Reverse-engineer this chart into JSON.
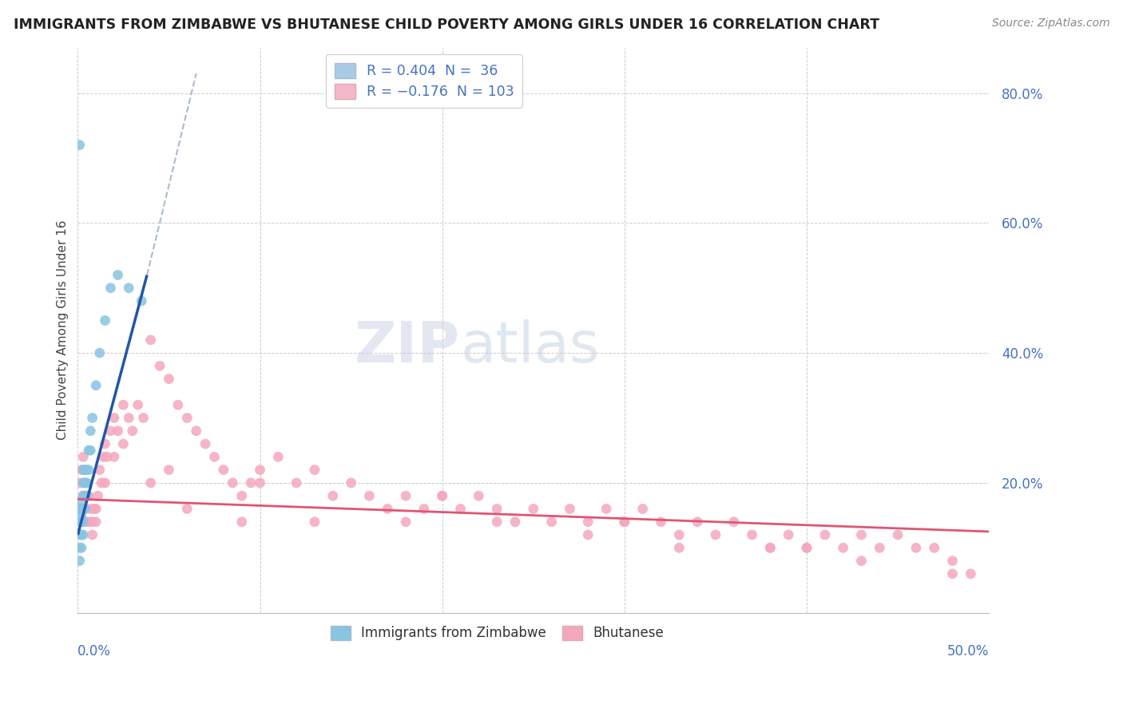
{
  "title": "IMMIGRANTS FROM ZIMBABWE VS BHUTANESE CHILD POVERTY AMONG GIRLS UNDER 16 CORRELATION CHART",
  "source": "Source: ZipAtlas.com",
  "ylabel": "Child Poverty Among Girls Under 16",
  "yticks": [
    0.0,
    0.2,
    0.4,
    0.6,
    0.8
  ],
  "xlim": [
    0.0,
    0.5
  ],
  "ylim": [
    0.0,
    0.87
  ],
  "zimbabwe_color": "#89c4e1",
  "bhutanese_color": "#f4a8bc",
  "trendline_zimbabwe_color": "#2255aa",
  "trendline_bhutanese_color": "#e05575",
  "background_color": "#ffffff",
  "grid_color": "#cccccc",
  "watermark_zip": "ZIP",
  "watermark_atlas": "atlas",
  "zimbabwe_x": [
    0.001,
    0.001,
    0.001,
    0.001,
    0.001,
    0.002,
    0.002,
    0.002,
    0.002,
    0.002,
    0.003,
    0.003,
    0.003,
    0.003,
    0.003,
    0.003,
    0.004,
    0.004,
    0.004,
    0.004,
    0.005,
    0.005,
    0.005,
    0.006,
    0.006,
    0.007,
    0.007,
    0.008,
    0.01,
    0.012,
    0.015,
    0.018,
    0.022,
    0.028,
    0.035,
    0.001
  ],
  "zimbabwe_y": [
    0.08,
    0.1,
    0.12,
    0.14,
    0.16,
    0.1,
    0.12,
    0.14,
    0.15,
    0.17,
    0.12,
    0.14,
    0.16,
    0.18,
    0.2,
    0.22,
    0.16,
    0.18,
    0.2,
    0.22,
    0.18,
    0.2,
    0.22,
    0.22,
    0.25,
    0.25,
    0.28,
    0.3,
    0.35,
    0.4,
    0.45,
    0.5,
    0.52,
    0.5,
    0.48,
    0.72
  ],
  "bhutanese_x": [
    0.001,
    0.002,
    0.002,
    0.003,
    0.003,
    0.004,
    0.004,
    0.005,
    0.005,
    0.006,
    0.006,
    0.007,
    0.008,
    0.009,
    0.01,
    0.011,
    0.012,
    0.013,
    0.014,
    0.015,
    0.016,
    0.018,
    0.02,
    0.022,
    0.025,
    0.028,
    0.03,
    0.033,
    0.036,
    0.04,
    0.045,
    0.05,
    0.055,
    0.06,
    0.065,
    0.07,
    0.075,
    0.08,
    0.085,
    0.09,
    0.095,
    0.1,
    0.11,
    0.12,
    0.13,
    0.14,
    0.15,
    0.16,
    0.17,
    0.18,
    0.19,
    0.2,
    0.21,
    0.22,
    0.23,
    0.24,
    0.25,
    0.26,
    0.27,
    0.28,
    0.29,
    0.3,
    0.31,
    0.32,
    0.33,
    0.34,
    0.35,
    0.36,
    0.37,
    0.38,
    0.39,
    0.4,
    0.41,
    0.42,
    0.43,
    0.44,
    0.45,
    0.46,
    0.47,
    0.48,
    0.49,
    0.003,
    0.008,
    0.015,
    0.025,
    0.04,
    0.06,
    0.09,
    0.13,
    0.18,
    0.23,
    0.28,
    0.33,
    0.38,
    0.43,
    0.48,
    0.02,
    0.05,
    0.1,
    0.2,
    0.3,
    0.4,
    0.01
  ],
  "bhutanese_y": [
    0.2,
    0.16,
    0.22,
    0.18,
    0.24,
    0.16,
    0.2,
    0.14,
    0.18,
    0.14,
    0.18,
    0.16,
    0.14,
    0.16,
    0.14,
    0.18,
    0.22,
    0.2,
    0.24,
    0.26,
    0.24,
    0.28,
    0.3,
    0.28,
    0.32,
    0.3,
    0.28,
    0.32,
    0.3,
    0.42,
    0.38,
    0.36,
    0.32,
    0.3,
    0.28,
    0.26,
    0.24,
    0.22,
    0.2,
    0.18,
    0.2,
    0.22,
    0.24,
    0.2,
    0.22,
    0.18,
    0.2,
    0.18,
    0.16,
    0.18,
    0.16,
    0.18,
    0.16,
    0.18,
    0.16,
    0.14,
    0.16,
    0.14,
    0.16,
    0.14,
    0.16,
    0.14,
    0.16,
    0.14,
    0.12,
    0.14,
    0.12,
    0.14,
    0.12,
    0.1,
    0.12,
    0.1,
    0.12,
    0.1,
    0.12,
    0.1,
    0.12,
    0.1,
    0.1,
    0.08,
    0.06,
    0.14,
    0.12,
    0.2,
    0.26,
    0.2,
    0.16,
    0.14,
    0.14,
    0.14,
    0.14,
    0.12,
    0.1,
    0.1,
    0.08,
    0.06,
    0.24,
    0.22,
    0.2,
    0.18,
    0.14,
    0.1,
    0.16
  ],
  "trendline_z_x0": 0.0,
  "trendline_z_y0": 0.12,
  "trendline_z_x1": 0.038,
  "trendline_z_y1": 0.52,
  "trendline_z_dash_x0": 0.038,
  "trendline_z_dash_y0": 0.52,
  "trendline_z_dash_x1": 0.065,
  "trendline_z_dash_y1": 0.83,
  "trendline_b_x0": 0.0,
  "trendline_b_y0": 0.175,
  "trendline_b_x1": 0.5,
  "trendline_b_y1": 0.125
}
